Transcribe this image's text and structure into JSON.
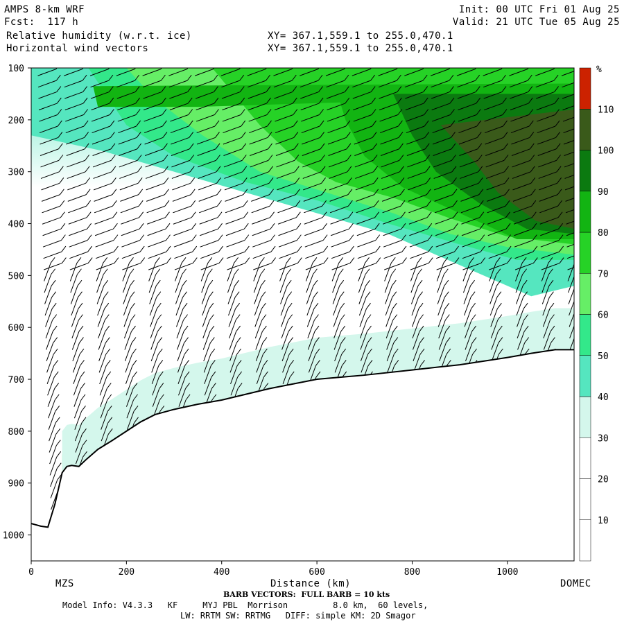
{
  "header": {
    "model": "AMPS 8-km WRF",
    "forecast": "Fcst:  117 h",
    "field": "Relative humidity (w.r.t. ice)",
    "vectors": "Horizontal wind vectors",
    "init": "Init: 00 UTC Fri 01 Aug 25",
    "valid": "Valid: 21 UTC Tue 05 Aug 25",
    "xy_line1": "XY= 367.1,559.1 to 255.0,470.1",
    "xy_line2": "XY= 367.1,559.1 to 255.0,470.1"
  },
  "footer": {
    "barb_note": "BARB VECTORS:  FULL BARB = 10 kts",
    "model_info": "Model Info: V4.3.3   KF     MYJ PBL  Morrison         8.0 km,  60 levels,",
    "physics": "LW: RRTM SW: RRTMG   DIFF: simple KM: 2D Smagor"
  },
  "colors": {
    "rh_lt30": "#ffffff",
    "rh_30_40": "#d4f7ec",
    "rh_40_50": "#55e6bf",
    "rh_50_60": "#33e88a",
    "rh_60_70": "#66ee66",
    "rh_70_80": "#26d226",
    "rh_80_90": "#12b412",
    "rh_90_100": "#0b7a10",
    "rh_100_110": "#3a5a1a",
    "rh_gt110": "#cc2200",
    "terrain_line": "#000000",
    "barb": "#000000"
  },
  "chart_data": {
    "type": "heatmap",
    "title": "Relative humidity (w.r.t. ice)",
    "xlabel": "Distance (km)",
    "ylabel": "",
    "xlim": [
      0,
      1140
    ],
    "ylim": [
      1050,
      100
    ],
    "x_ticks": [
      0,
      200,
      400,
      600,
      800,
      1000
    ],
    "y_ticks": [
      100,
      200,
      300,
      400,
      500,
      600,
      700,
      800,
      900,
      1000
    ],
    "endpoint_labels": [
      "MZS",
      "DOMEC"
    ],
    "colorbar": {
      "unit": "%",
      "levels": [
        10,
        20,
        30,
        40,
        50,
        60,
        70,
        80,
        90,
        100,
        110
      ]
    },
    "terrain_profile": {
      "x": [
        0,
        20,
        35,
        50,
        65,
        75,
        85,
        100,
        115,
        140,
        170,
        200,
        230,
        260,
        300,
        350,
        400,
        500,
        600,
        700,
        800,
        900,
        950,
        1000,
        1050,
        1100,
        1140
      ],
      "p": [
        978,
        983,
        985,
        940,
        880,
        868,
        866,
        868,
        855,
        835,
        818,
        800,
        782,
        768,
        758,
        748,
        740,
        718,
        700,
        692,
        682,
        672,
        665,
        658,
        650,
        643,
        643
      ]
    },
    "wind_barbs": "FULL BARB = 10 kts"
  }
}
